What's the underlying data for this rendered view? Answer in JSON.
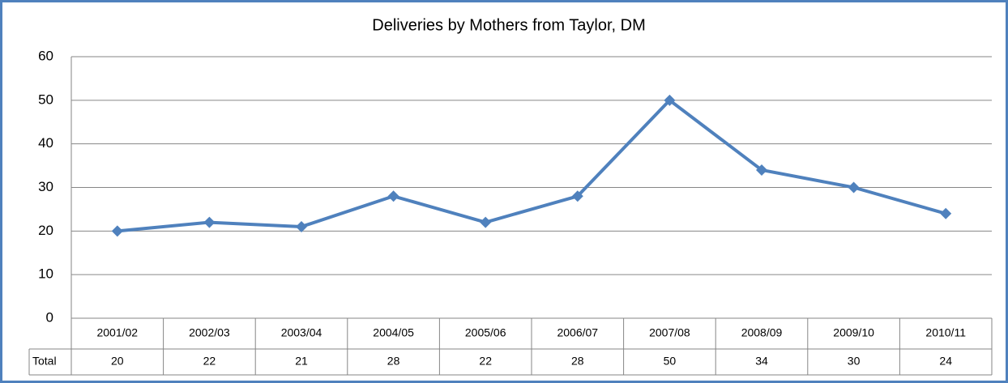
{
  "chart_data": {
    "type": "line",
    "title": "Deliveries by Mothers from Taylor, DM",
    "categories": [
      "2001/02",
      "2002/03",
      "2003/04",
      "2004/05",
      "2005/06",
      "2006/07",
      "2007/08",
      "2008/09",
      "2009/10",
      "2010/11"
    ],
    "series": [
      {
        "name": "Total",
        "color": "#4f81bd",
        "values": [
          20,
          22,
          21,
          28,
          22,
          28,
          50,
          34,
          30,
          24
        ]
      }
    ],
    "ylim": [
      0,
      60
    ],
    "yticks": [
      0,
      10,
      20,
      30,
      40,
      50,
      60
    ],
    "grid": true
  }
}
